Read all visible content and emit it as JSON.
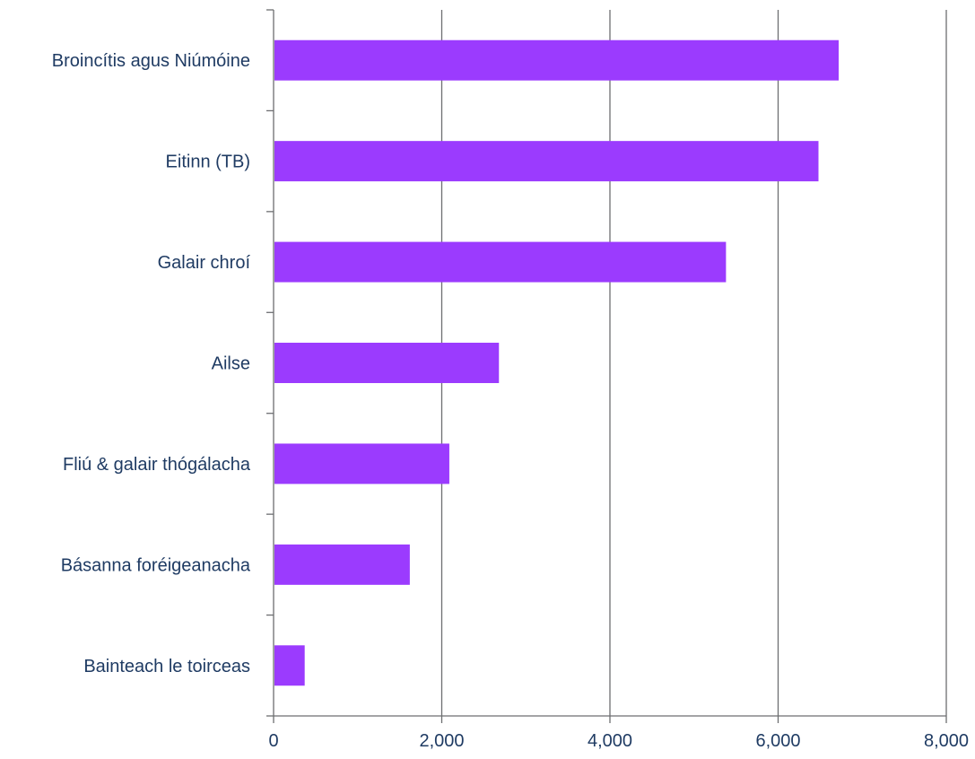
{
  "chart_data": {
    "type": "bar",
    "orientation": "horizontal",
    "categories": [
      "Broincítis agus Niúmóine",
      "Eitinn (TB)",
      "Galair chroí",
      "Ailse",
      "Fliú & galair thógálacha",
      "Básanna foréigeanacha",
      "Bainteach le toirceas"
    ],
    "values": [
      6720,
      6480,
      5380,
      2680,
      2090,
      1620,
      370
    ],
    "xlim": [
      0,
      8000
    ],
    "xticks": [
      0,
      2000,
      4000,
      6000,
      8000
    ],
    "xtick_labels": [
      "0",
      "2,000",
      "4,000",
      "6,000",
      "8,000"
    ],
    "title": "",
    "xlabel": "",
    "ylabel": "",
    "grid": "vertical major gridlines",
    "legend": "none",
    "colors": {
      "bar": "#9b3bfe",
      "grid": "#6d6e71",
      "text": "#1f3b63"
    }
  }
}
